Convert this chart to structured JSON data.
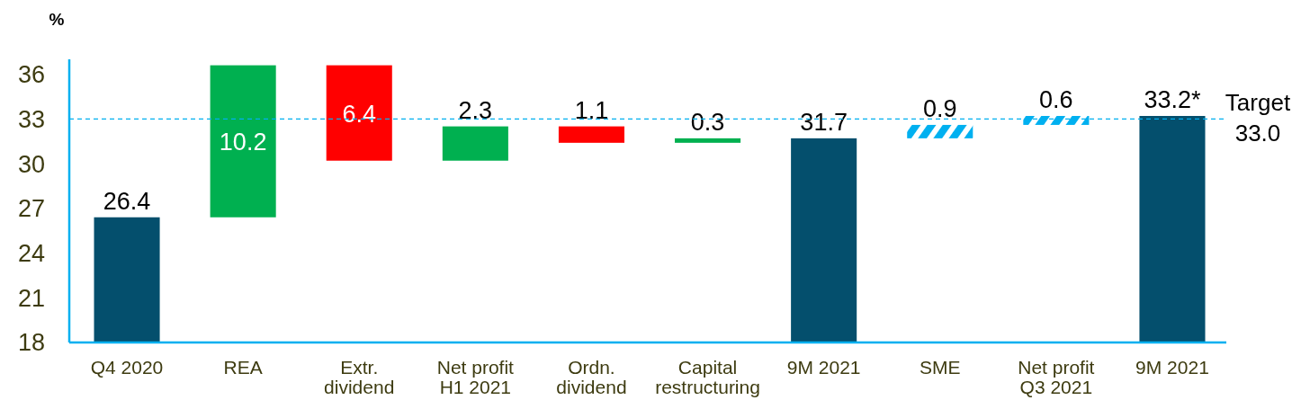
{
  "chart_data": {
    "type": "bar",
    "ylabel": "%",
    "categories": [
      "Q4 2020",
      "REA",
      "Extr. dividend",
      "Net profit H1 2021",
      "Ordn. dividend",
      "Capital restructuring",
      "9M 2021",
      "SME",
      "Net profit Q3 2021",
      "9M 2021"
    ],
    "series": [
      {
        "values": [
          26.4,
          10.2,
          6.4,
          2.3,
          1.1,
          0.3,
          31.7,
          null,
          null,
          33.2
        ],
        "base": [
          null,
          26.4,
          30.2,
          30.2,
          31.4,
          31.4,
          null,
          null,
          null,
          null
        ],
        "colors": [
          "#044f6d",
          "#00b050",
          "#ff0000",
          "#00b050",
          "#ff0000",
          "#00b050",
          "#044f6d",
          null,
          null,
          "#044f6d"
        ],
        "value_labels": [
          "26.4",
          "10.2",
          "6.4",
          "2.3",
          "1.1",
          "0.3",
          "31.7",
          null,
          null,
          "33.2*"
        ]
      },
      {
        "values": [
          null,
          null,
          null,
          null,
          null,
          null,
          null,
          0.9,
          0.6,
          null
        ],
        "base": [
          null,
          null,
          null,
          null,
          null,
          null,
          null,
          31.7,
          32.6,
          null
        ],
        "color": "#00b0f0",
        "value_labels": [
          null,
          null,
          null,
          null,
          null,
          null,
          null,
          "0.9",
          "0.6",
          null
        ]
      }
    ],
    "ylim": [
      18,
      37
    ],
    "yticks": [
      18,
      21,
      24,
      27,
      30,
      33,
      36
    ],
    "ref_lines": [
      {
        "axis": "y",
        "value": 33.0,
        "label": "Target 33.0",
        "color": "#00b0f0",
        "line_style": "dashed"
      }
    ]
  }
}
